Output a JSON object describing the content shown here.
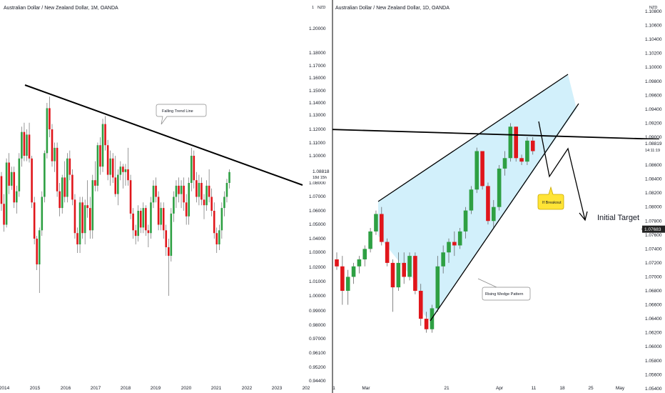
{
  "left_panel": {
    "title": "Australian Dollar / New Zealand Dollar, 1M, OANDA",
    "currency": "NZD",
    "y_ticks": [
      "1.20000",
      "1.18000",
      "1.17000",
      "1.16000",
      "1.15000",
      "1.14000",
      "1.13000",
      "1.12000",
      "1.11000",
      "1.10000",
      "1.09000",
      "1.08000",
      "1.07000",
      "1.06000",
      "1.05000",
      "1.04000",
      "1.03000",
      "1.02000",
      "1.01000",
      "1.00000",
      "0.99000",
      "0.98000",
      "0.97000",
      "0.96100",
      "0.95200",
      "0.94400"
    ],
    "top_tick": "1",
    "x_ticks": [
      "2014",
      "2015",
      "2016",
      "2017",
      "2018",
      "2019",
      "2020",
      "2021",
      "2022",
      "2023",
      "202"
    ],
    "price_label": "1.08818",
    "countdown_label": "18d 15h",
    "annotation": "Falling Trend Line"
  },
  "right_panel": {
    "title": "Australian Dollar / New Zealand Dollar, 1D, OANDA",
    "currency": "NZD",
    "y_ticks": [
      "1.10800",
      "1.10600",
      "1.10400",
      "1.10200",
      "1.10000",
      "1.09800",
      "1.09600",
      "1.09400",
      "1.09200",
      "1.09000",
      "1.08800",
      "1.08600",
      "1.08400",
      "1.08200",
      "1.08000",
      "1.07800",
      "1.07600",
      "1.07400",
      "1.07200",
      "1.07000",
      "1.06800",
      "1.06600",
      "1.06400",
      "1.06200",
      "1.06000",
      "1.05800",
      "1.05600",
      "1.05400"
    ],
    "x_ticks": [
      "1",
      "Mar",
      "21",
      "Apr",
      "11",
      "18",
      "25",
      "May"
    ],
    "price_label": "1.08819",
    "time_label": "14:11:19",
    "target_price_label": "1.07683",
    "wedge_label": "Rising Wedge Pattern",
    "breakout_label": "If Breakout",
    "target_label": "Initial Target"
  },
  "colors": {
    "up": "#2ea043",
    "down": "#e0161b",
    "wedge_fill": "#cdeefb",
    "callout_fill": "#ffe436",
    "line": "#000000"
  },
  "chart_data": [
    {
      "type": "candlestick",
      "title": "Australian Dollar / New Zealand Dollar, 1M, OANDA",
      "ylabel": "NZD",
      "ylim": [
        0.944,
        1.2
      ],
      "x_range": [
        "2014",
        "2023"
      ],
      "candles": [
        {
          "o": 1.085,
          "h": 1.088,
          "l": 1.06,
          "c": 1.065
        },
        {
          "o": 1.065,
          "h": 1.072,
          "l": 1.045,
          "c": 1.05
        },
        {
          "o": 1.05,
          "h": 1.098,
          "l": 1.048,
          "c": 1.095
        },
        {
          "o": 1.095,
          "h": 1.102,
          "l": 1.072,
          "c": 1.078
        },
        {
          "o": 1.078,
          "h": 1.092,
          "l": 1.075,
          "c": 1.088
        },
        {
          "o": 1.088,
          "h": 1.092,
          "l": 1.062,
          "c": 1.066
        },
        {
          "o": 1.066,
          "h": 1.078,
          "l": 1.058,
          "c": 1.074
        },
        {
          "o": 1.074,
          "h": 1.102,
          "l": 1.07,
          "c": 1.098
        },
        {
          "o": 1.098,
          "h": 1.122,
          "l": 1.092,
          "c": 1.118
        },
        {
          "o": 1.118,
          "h": 1.125,
          "l": 1.096,
          "c": 1.1
        },
        {
          "o": 1.1,
          "h": 1.12,
          "l": 1.096,
          "c": 1.116
        },
        {
          "o": 1.116,
          "h": 1.125,
          "l": 1.095,
          "c": 1.098
        },
        {
          "o": 1.098,
          "h": 1.1,
          "l": 1.062,
          "c": 1.066
        },
        {
          "o": 1.066,
          "h": 1.07,
          "l": 1.036,
          "c": 1.04
        },
        {
          "o": 1.04,
          "h": 1.042,
          "l": 1.018,
          "c": 1.022
        },
        {
          "o": 1.022,
          "h": 1.048,
          "l": 1.002,
          "c": 1.046
        },
        {
          "o": 1.046,
          "h": 1.074,
          "l": 1.042,
          "c": 1.07
        },
        {
          "o": 1.07,
          "h": 1.104,
          "l": 1.066,
          "c": 1.102
        },
        {
          "o": 1.102,
          "h": 1.14,
          "l": 1.098,
          "c": 1.136
        },
        {
          "o": 1.136,
          "h": 1.145,
          "l": 1.114,
          "c": 1.12
        },
        {
          "o": 1.12,
          "h": 1.124,
          "l": 1.092,
          "c": 1.096
        },
        {
          "o": 1.096,
          "h": 1.11,
          "l": 1.088,
          "c": 1.106
        },
        {
          "o": 1.106,
          "h": 1.11,
          "l": 1.07,
          "c": 1.074
        },
        {
          "o": 1.074,
          "h": 1.08,
          "l": 1.056,
          "c": 1.062
        },
        {
          "o": 1.062,
          "h": 1.086,
          "l": 1.058,
          "c": 1.084
        },
        {
          "o": 1.084,
          "h": 1.096,
          "l": 1.066,
          "c": 1.07
        },
        {
          "o": 1.07,
          "h": 1.102,
          "l": 1.066,
          "c": 1.098
        },
        {
          "o": 1.098,
          "h": 1.104,
          "l": 1.082,
          "c": 1.086
        },
        {
          "o": 1.086,
          "h": 1.09,
          "l": 1.064,
          "c": 1.068
        },
        {
          "o": 1.068,
          "h": 1.072,
          "l": 1.04,
          "c": 1.044
        },
        {
          "o": 1.044,
          "h": 1.048,
          "l": 1.03,
          "c": 1.036
        },
        {
          "o": 1.036,
          "h": 1.07,
          "l": 1.03,
          "c": 1.066
        },
        {
          "o": 1.066,
          "h": 1.07,
          "l": 1.04,
          "c": 1.044
        },
        {
          "o": 1.044,
          "h": 1.068,
          "l": 1.036,
          "c": 1.064
        },
        {
          "o": 1.064,
          "h": 1.082,
          "l": 1.055,
          "c": 1.062
        },
        {
          "o": 1.062,
          "h": 1.07,
          "l": 1.04,
          "c": 1.046
        },
        {
          "o": 1.046,
          "h": 1.086,
          "l": 1.04,
          "c": 1.082
        },
        {
          "o": 1.082,
          "h": 1.096,
          "l": 1.074,
          "c": 1.078
        },
        {
          "o": 1.078,
          "h": 1.11,
          "l": 1.074,
          "c": 1.108
        },
        {
          "o": 1.108,
          "h": 1.114,
          "l": 1.086,
          "c": 1.092
        },
        {
          "o": 1.092,
          "h": 1.128,
          "l": 1.088,
          "c": 1.124
        },
        {
          "o": 1.124,
          "h": 1.13,
          "l": 1.104,
          "c": 1.108
        },
        {
          "o": 1.108,
          "h": 1.112,
          "l": 1.082,
          "c": 1.086
        },
        {
          "o": 1.086,
          "h": 1.104,
          "l": 1.078,
          "c": 1.098
        },
        {
          "o": 1.098,
          "h": 1.102,
          "l": 1.08,
          "c": 1.084
        },
        {
          "o": 1.084,
          "h": 1.1,
          "l": 1.07,
          "c": 1.072
        },
        {
          "o": 1.072,
          "h": 1.09,
          "l": 1.064,
          "c": 1.086
        },
        {
          "o": 1.086,
          "h": 1.096,
          "l": 1.082,
          "c": 1.092
        },
        {
          "o": 1.092,
          "h": 1.094,
          "l": 1.076,
          "c": 1.088
        },
        {
          "o": 1.088,
          "h": 1.094,
          "l": 1.078,
          "c": 1.09
        },
        {
          "o": 1.09,
          "h": 1.106,
          "l": 1.078,
          "c": 1.082
        },
        {
          "o": 1.082,
          "h": 1.086,
          "l": 1.054,
          "c": 1.058
        },
        {
          "o": 1.058,
          "h": 1.062,
          "l": 1.04,
          "c": 1.046
        },
        {
          "o": 1.046,
          "h": 1.05,
          "l": 1.036,
          "c": 1.042
        },
        {
          "o": 1.042,
          "h": 1.064,
          "l": 1.038,
          "c": 1.06
        },
        {
          "o": 1.06,
          "h": 1.062,
          "l": 1.044,
          "c": 1.048
        },
        {
          "o": 1.048,
          "h": 1.066,
          "l": 1.044,
          "c": 1.062
        },
        {
          "o": 1.062,
          "h": 1.064,
          "l": 1.042,
          "c": 1.046
        },
        {
          "o": 1.046,
          "h": 1.05,
          "l": 1.034,
          "c": 1.044
        },
        {
          "o": 1.044,
          "h": 1.07,
          "l": 1.04,
          "c": 1.066
        },
        {
          "o": 1.066,
          "h": 1.082,
          "l": 1.062,
          "c": 1.078
        },
        {
          "o": 1.078,
          "h": 1.084,
          "l": 1.066,
          "c": 1.07
        },
        {
          "o": 1.07,
          "h": 1.074,
          "l": 1.046,
          "c": 1.05
        },
        {
          "o": 1.05,
          "h": 1.066,
          "l": 1.046,
          "c": 1.062
        },
        {
          "o": 1.062,
          "h": 1.066,
          "l": 1.04,
          "c": 1.046
        },
        {
          "o": 1.046,
          "h": 1.05,
          "l": 1.028,
          "c": 1.034
        },
        {
          "o": 1.034,
          "h": 1.04,
          "l": 1.0,
          "c": 1.028
        },
        {
          "o": 1.028,
          "h": 1.062,
          "l": 1.024,
          "c": 1.058
        },
        {
          "o": 1.058,
          "h": 1.074,
          "l": 1.052,
          "c": 1.07
        },
        {
          "o": 1.07,
          "h": 1.082,
          "l": 1.062,
          "c": 1.078
        },
        {
          "o": 1.078,
          "h": 1.084,
          "l": 1.066,
          "c": 1.072
        },
        {
          "o": 1.072,
          "h": 1.082,
          "l": 1.062,
          "c": 1.078
        },
        {
          "o": 1.078,
          "h": 1.084,
          "l": 1.06,
          "c": 1.066
        },
        {
          "o": 1.066,
          "h": 1.072,
          "l": 1.05,
          "c": 1.056
        },
        {
          "o": 1.056,
          "h": 1.084,
          "l": 1.05,
          "c": 1.08
        },
        {
          "o": 1.08,
          "h": 1.106,
          "l": 1.074,
          "c": 1.1
        },
        {
          "o": 1.1,
          "h": 1.104,
          "l": 1.076,
          "c": 1.082
        },
        {
          "o": 1.082,
          "h": 1.088,
          "l": 1.066,
          "c": 1.07
        },
        {
          "o": 1.07,
          "h": 1.086,
          "l": 1.064,
          "c": 1.08
        },
        {
          "o": 1.08,
          "h": 1.084,
          "l": 1.064,
          "c": 1.068
        },
        {
          "o": 1.068,
          "h": 1.072,
          "l": 1.054,
          "c": 1.064
        },
        {
          "o": 1.064,
          "h": 1.082,
          "l": 1.06,
          "c": 1.078
        },
        {
          "o": 1.078,
          "h": 1.09,
          "l": 1.066,
          "c": 1.07
        },
        {
          "o": 1.07,
          "h": 1.076,
          "l": 1.056,
          "c": 1.06
        },
        {
          "o": 1.06,
          "h": 1.066,
          "l": 1.04,
          "c": 1.044
        },
        {
          "o": 1.044,
          "h": 1.048,
          "l": 1.03,
          "c": 1.036
        },
        {
          "o": 1.036,
          "h": 1.05,
          "l": 1.032,
          "c": 1.046
        },
        {
          "o": 1.046,
          "h": 1.066,
          "l": 1.04,
          "c": 1.062
        },
        {
          "o": 1.062,
          "h": 1.074,
          "l": 1.056,
          "c": 1.07
        },
        {
          "o": 1.07,
          "h": 1.083,
          "l": 1.066,
          "c": 1.08
        },
        {
          "o": 1.08,
          "h": 1.09,
          "l": 1.076,
          "c": 1.088
        }
      ],
      "trend_line": {
        "name": "Falling Trend Line",
        "points": [
          [
            "2014.8",
            1.15
          ],
          [
            "2023.9",
            1.081
          ]
        ]
      },
      "last_price": 1.08818
    },
    {
      "type": "candlestick",
      "title": "Australian Dollar / New Zealand Dollar, 1D, OANDA",
      "ylabel": "NZD",
      "ylim": [
        1.054,
        1.108
      ],
      "x_range": [
        "Feb 21",
        "May 2"
      ],
      "candles": [
        {
          "o": 1.0725,
          "h": 1.0735,
          "l": 1.071,
          "c": 1.0715
        },
        {
          "o": 1.0715,
          "h": 1.073,
          "l": 1.066,
          "c": 1.068
        },
        {
          "o": 1.068,
          "h": 1.071,
          "l": 1.066,
          "c": 1.07
        },
        {
          "o": 1.07,
          "h": 1.072,
          "l": 1.069,
          "c": 1.0715
        },
        {
          "o": 1.0715,
          "h": 1.073,
          "l": 1.0705,
          "c": 1.0725
        },
        {
          "o": 1.0725,
          "h": 1.0745,
          "l": 1.0715,
          "c": 1.074
        },
        {
          "o": 1.074,
          "h": 1.077,
          "l": 1.0735,
          "c": 1.0765
        },
        {
          "o": 1.0765,
          "h": 1.0795,
          "l": 1.076,
          "c": 1.079
        },
        {
          "o": 1.079,
          "h": 1.08,
          "l": 1.0745,
          "c": 1.075
        },
        {
          "o": 1.075,
          "h": 1.0755,
          "l": 1.0715,
          "c": 1.072
        },
        {
          "o": 1.072,
          "h": 1.0725,
          "l": 1.065,
          "c": 1.0685
        },
        {
          "o": 1.0685,
          "h": 1.0735,
          "l": 1.068,
          "c": 1.072
        },
        {
          "o": 1.072,
          "h": 1.0735,
          "l": 1.069,
          "c": 1.07
        },
        {
          "o": 1.07,
          "h": 1.0735,
          "l": 1.0695,
          "c": 1.073
        },
        {
          "o": 1.073,
          "h": 1.0735,
          "l": 1.0675,
          "c": 1.068
        },
        {
          "o": 1.068,
          "h": 1.069,
          "l": 1.063,
          "c": 1.064
        },
        {
          "o": 1.064,
          "h": 1.065,
          "l": 1.062,
          "c": 1.0625
        },
        {
          "o": 1.0625,
          "h": 1.066,
          "l": 1.062,
          "c": 1.0655
        },
        {
          "o": 1.0655,
          "h": 1.073,
          "l": 1.065,
          "c": 1.0715
        },
        {
          "o": 1.0715,
          "h": 1.0745,
          "l": 1.0705,
          "c": 1.0735
        },
        {
          "o": 1.0735,
          "h": 1.0755,
          "l": 1.072,
          "c": 1.075
        },
        {
          "o": 1.075,
          "h": 1.0765,
          "l": 1.073,
          "c": 1.0745
        },
        {
          "o": 1.0745,
          "h": 1.077,
          "l": 1.074,
          "c": 1.0765
        },
        {
          "o": 1.0765,
          "h": 1.08,
          "l": 1.0755,
          "c": 1.0795
        },
        {
          "o": 1.0795,
          "h": 1.083,
          "l": 1.079,
          "c": 1.0825
        },
        {
          "o": 1.0825,
          "h": 1.0885,
          "l": 1.082,
          "c": 1.088
        },
        {
          "o": 1.088,
          "h": 1.088,
          "l": 1.0825,
          "c": 1.083
        },
        {
          "o": 1.083,
          "h": 1.0835,
          "l": 1.0775,
          "c": 1.078
        },
        {
          "o": 1.078,
          "h": 1.081,
          "l": 1.077,
          "c": 1.08
        },
        {
          "o": 1.08,
          "h": 1.086,
          "l": 1.0795,
          "c": 1.0855
        },
        {
          "o": 1.0855,
          "h": 1.088,
          "l": 1.0845,
          "c": 1.087
        },
        {
          "o": 1.087,
          "h": 1.092,
          "l": 1.0865,
          "c": 1.0915
        },
        {
          "o": 1.0915,
          "h": 1.0915,
          "l": 1.0865,
          "c": 1.087
        },
        {
          "o": 1.087,
          "h": 1.0875,
          "l": 1.086,
          "c": 1.0865
        },
        {
          "o": 1.0865,
          "h": 1.09,
          "l": 1.086,
          "c": 1.0895
        },
        {
          "o": 1.0895,
          "h": 1.09,
          "l": 1.0875,
          "c": 1.088
        }
      ],
      "horizontal_line": {
        "points": [
          [
            "Feb 21",
            1.0911
          ],
          [
            "May 2",
            1.0897
          ]
        ]
      },
      "wedge": {
        "name": "Rising Wedge Pattern",
        "upper": [
          [
            "Mar 1",
            1.0795
          ],
          [
            "Apr 25",
            1.0985
          ]
        ],
        "lower": [
          [
            "Mar 17",
            1.0625
          ],
          [
            "Apr 28",
            1.093
          ]
        ]
      },
      "projection": [
        [
          "Apr 12",
          1.091
        ],
        [
          "Apr 15",
          1.082
        ],
        [
          "Apr 21",
          1.087
        ],
        [
          "Apr 26",
          1.077
        ]
      ],
      "breakout_label": "If Breakout",
      "target_label": "Initial Target",
      "target_price": 1.07683,
      "last_price": 1.08819
    }
  ]
}
